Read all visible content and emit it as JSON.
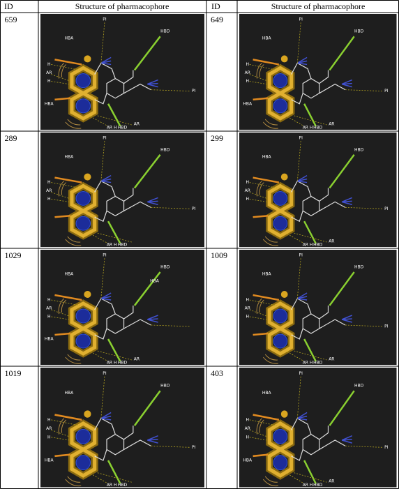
{
  "table": {
    "header": [
      "ID",
      "Structure of pharmacophore",
      "ID",
      "Structure of pharmacophore"
    ],
    "rows": [
      [
        {
          "id": "659",
          "features": [
            "HBA",
            "PI",
            "HBD",
            "H",
            "AR",
            "H",
            "HBA",
            "PI",
            "AR H",
            "HBD",
            "AR"
          ]
        },
        {
          "id": "649",
          "features": [
            "HBA",
            "PI",
            "HBD",
            "H",
            "AR",
            "H",
            "HBA",
            "PI",
            "AR H",
            "HBD",
            "AR"
          ]
        }
      ],
      [
        {
          "id": "289",
          "features": [
            "PI",
            "HBD",
            "H",
            "AR",
            "H",
            "HBA",
            "PI",
            "AR H",
            "HBD"
          ]
        },
        {
          "id": "299",
          "features": [
            "PI",
            "HBD",
            "H",
            "AR",
            "H",
            "HBA",
            "PI",
            "AR H",
            "HBD",
            "AR"
          ]
        }
      ],
      [
        {
          "id": "1029",
          "features": [
            "PI",
            "HBD",
            "HBA",
            "HBA",
            "H",
            "AR",
            "H",
            "HBA",
            "AR H",
            "HBD",
            "AR"
          ]
        },
        {
          "id": "1009",
          "features": [
            "PI",
            "HBD",
            "H",
            "AR",
            "H",
            "HBA",
            "PI",
            "AR H",
            "HBD",
            "AR"
          ]
        }
      ],
      [
        {
          "id": "1019",
          "features": [
            "PI",
            "HBD",
            "HBA",
            "H",
            "AR",
            "H",
            "HBA",
            "PI",
            "AR H",
            "HBD"
          ]
        },
        {
          "id": "403",
          "features": [
            "HBA",
            "PI",
            "HBD",
            "H",
            "AR",
            "H",
            "HBA",
            "PI",
            "AR H",
            "HBD",
            "AR"
          ]
        }
      ]
    ]
  }
}
